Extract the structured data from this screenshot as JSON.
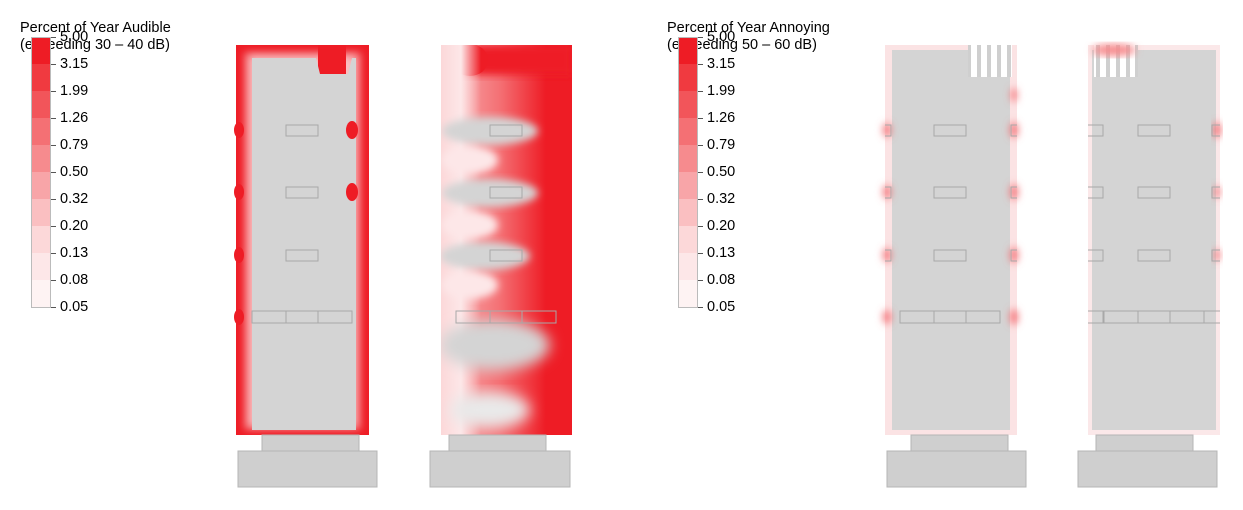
{
  "legends": [
    {
      "title_line1": "Percent of Year Audible",
      "title_line2": "(exceeding 30 – 40 dB)",
      "ticks": [
        "5.00",
        "3.15",
        "1.99",
        "1.26",
        "0.79",
        "0.50",
        "0.32",
        "0.20",
        "0.13",
        "0.08",
        "0.05"
      ]
    },
    {
      "title_line1": "Percent of Year Annoying",
      "title_line2": "(exceeding 50 – 60 dB)",
      "ticks": [
        "5.00",
        "3.15",
        "1.99",
        "1.26",
        "0.79",
        "0.50",
        "0.32",
        "0.20",
        "0.13",
        "0.08",
        "0.05"
      ]
    }
  ],
  "colors": {
    "scale": [
      "#ee1c25",
      "#f03a40",
      "#f2555a",
      "#f47074",
      "#f68b8e",
      "#f8a5a8",
      "#fabfc1",
      "#fcd8d9",
      "#fde7e8",
      "#fef3f3"
    ],
    "building": "#d4d4d4",
    "base": "#cfcfcf",
    "outline": "#a8a8a8"
  },
  "elevations": [
    {
      "panel": "audible-elevation-1",
      "exposure": "edges-high"
    },
    {
      "panel": "audible-elevation-2",
      "exposure": "facade-high"
    },
    {
      "panel": "annoying-elevation-1",
      "exposure": "edges-low"
    },
    {
      "panel": "annoying-elevation-2",
      "exposure": "edges-low"
    }
  ]
}
